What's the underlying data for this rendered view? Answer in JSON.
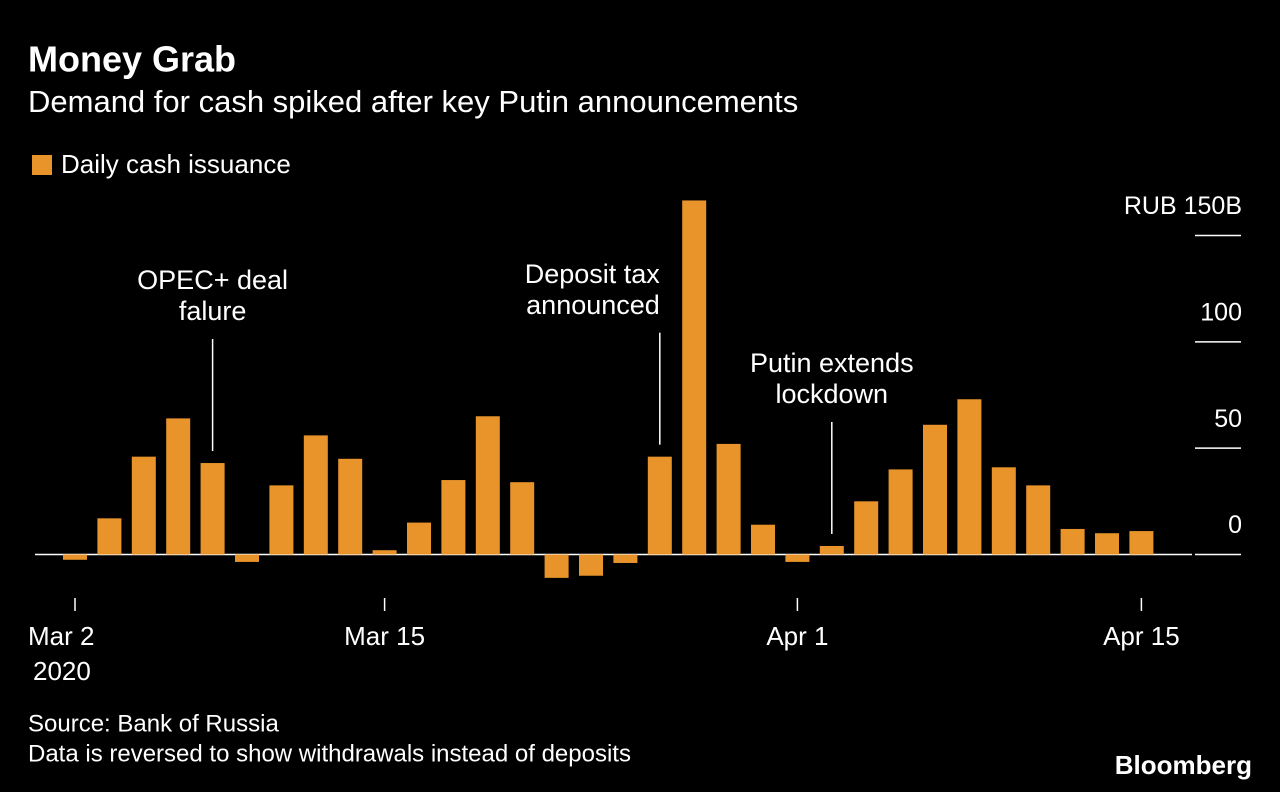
{
  "chart_data": {
    "type": "bar",
    "title": "Money Grab",
    "subtitle": "Demand for cash spiked after key Putin announcements",
    "legend": "Daily cash issuance",
    "color": "#e8942a",
    "categories": [
      "Mar 2",
      null,
      null,
      null,
      null,
      null,
      null,
      null,
      null,
      "Mar 15",
      null,
      null,
      null,
      null,
      null,
      null,
      null,
      null,
      null,
      null,
      null,
      "Apr 1",
      null,
      null,
      null,
      null,
      null,
      null,
      null,
      null,
      null,
      "Apr 15"
    ],
    "year_label": "2020",
    "values": [
      -2.5,
      17,
      46,
      64,
      43,
      -3.5,
      32.5,
      56,
      45,
      2,
      15,
      35,
      65,
      34,
      -11,
      -10,
      -4,
      46,
      166.5,
      52,
      14,
      -3.5,
      4,
      25,
      40,
      61,
      73,
      41,
      32.5,
      12,
      10,
      11
    ],
    "ylim": [
      -20,
      170
    ],
    "yticks": [
      0,
      50,
      100,
      {
        "value": 150,
        "label": "RUB 150B"
      }
    ],
    "annotations": [
      {
        "lines": [
          "OPEC+ deal",
          "falure"
        ],
        "index": 4
      },
      {
        "lines": [
          "Deposit tax",
          "announced"
        ],
        "index": 17
      },
      {
        "lines": [
          "Putin extends",
          "lockdown"
        ],
        "index": 22
      }
    ],
    "source": "Source: Bank of Russia",
    "note": "Data is reversed to show withdrawals instead of deposits",
    "brand": "Bloomberg"
  }
}
